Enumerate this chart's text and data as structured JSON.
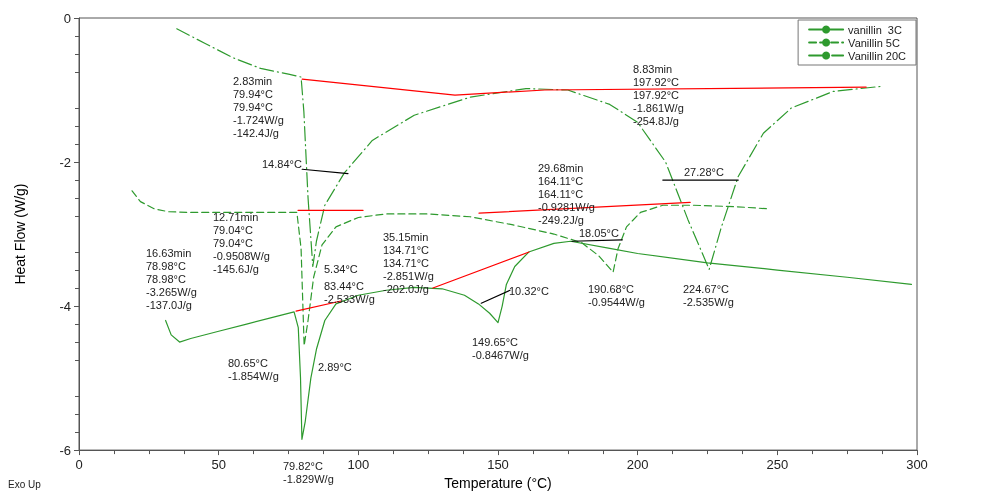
{
  "chart_data": {
    "type": "line",
    "xlabel": "Temperature (°C)",
    "ylabel": "Heat Flow (W/g)",
    "xlim": [
      0,
      300
    ],
    "xticks": [
      0,
      50,
      100,
      150,
      200,
      250,
      300
    ],
    "ylim": [
      -6,
      0
    ],
    "yticks": [
      -6,
      -4,
      -2,
      0
    ],
    "grid": false,
    "legend": "top right",
    "marker": "none",
    "series": [
      {
        "name": "vanillin  3C",
        "color": "#2e9a2e",
        "line_style": "solid",
        "x": [
          31,
          33,
          36,
          40,
          50,
          60,
          70,
          77,
          78.5,
          79.3,
          79.8,
          81,
          83,
          85,
          88,
          92,
          100,
          110,
          120,
          130,
          138,
          143,
          147,
          150,
          151.5,
          153,
          156,
          161,
          170,
          176,
          190,
          200,
          225,
          250,
          275,
          298
        ],
        "values": [
          -4.2,
          -4.4,
          -4.5,
          -4.45,
          -4.35,
          -4.25,
          -4.15,
          -4.08,
          -4.3,
          -5.0,
          -5.85,
          -5.6,
          -5.0,
          -4.6,
          -4.2,
          -3.97,
          -3.85,
          -3.78,
          -3.74,
          -3.76,
          -3.85,
          -3.97,
          -4.1,
          -4.23,
          -4.0,
          -3.7,
          -3.45,
          -3.25,
          -3.13,
          -3.1,
          -3.2,
          -3.27,
          -3.4,
          -3.5,
          -3.6,
          -3.7
        ]
      },
      {
        "name": "Vanillin 5C",
        "color": "#2e9a2e",
        "line_style": "dashed",
        "x": [
          19,
          22,
          27,
          32,
          40,
          60,
          78,
          79.5,
          80.6,
          82,
          84,
          87,
          92,
          100,
          110,
          125,
          140,
          155,
          170,
          180,
          186,
          191.2,
          193,
          196,
          201,
          209,
          220,
          235,
          247
        ],
        "values": [
          -2.4,
          -2.55,
          -2.65,
          -2.69,
          -2.7,
          -2.7,
          -2.7,
          -3.2,
          -4.55,
          -4.2,
          -3.6,
          -3.15,
          -2.9,
          -2.77,
          -2.72,
          -2.72,
          -2.76,
          -2.87,
          -3.0,
          -3.12,
          -3.3,
          -3.53,
          -3.2,
          -2.9,
          -2.7,
          -2.6,
          -2.6,
          -2.62,
          -2.65
        ]
      },
      {
        "name": "Vanillin 20C",
        "color": "#2e9a2e",
        "line_style": "dashdot",
        "x": [
          35,
          45,
          55,
          65,
          75,
          79.5,
          80.5,
          82,
          83.7,
          85,
          88,
          95,
          105,
          120,
          140,
          160,
          175,
          190,
          200,
          210,
          218,
          225.6,
          230,
          236,
          245,
          255,
          270,
          287
        ],
        "values": [
          -0.15,
          -0.35,
          -0.55,
          -0.7,
          -0.78,
          -0.82,
          -1.3,
          -2.5,
          -3.45,
          -3.1,
          -2.6,
          -2.15,
          -1.7,
          -1.35,
          -1.1,
          -0.98,
          -1.0,
          -1.2,
          -1.45,
          -2.0,
          -2.8,
          -3.49,
          -2.9,
          -2.2,
          -1.6,
          -1.25,
          -1.02,
          -0.95
        ]
      },
      {
        "color": "#ff0000",
        "line_style": "solid",
        "x": [
          79.9,
          134.6,
          166.8,
          281.8
        ],
        "values": [
          -0.85,
          -1.07,
          -1.0,
          -0.96
        ]
      },
      {
        "color": "#ff0000",
        "line_style": "solid",
        "x": [
          78.4,
          101.7
        ],
        "values": [
          -2.67,
          -2.67
        ]
      },
      {
        "color": "#ff0000",
        "line_style": "solid",
        "x": [
          143.2,
          218.8
        ],
        "values": [
          -2.71,
          -2.56
        ]
      },
      {
        "color": "#ff0000",
        "line_style": "solid",
        "x": [
          77.7,
          93.8
        ],
        "values": [
          -4.07,
          -3.93
        ]
      },
      {
        "color": "#ff0000",
        "line_style": "solid",
        "x": [
          126.7,
          161.1
        ],
        "values": [
          -3.75,
          -3.25
        ]
      },
      {
        "color": "#000000",
        "line_style": "solid",
        "x": [
          79.9,
          96.3
        ],
        "values": [
          -2.1,
          -2.16
        ]
      },
      {
        "color": "#000000",
        "line_style": "solid",
        "x": [
          209,
          236
        ],
        "values": [
          -2.25,
          -2.25
        ]
      },
      {
        "color": "#000000",
        "line_style": "solid",
        "x": [
          176.5,
          194.5
        ],
        "values": [
          -3.1,
          -3.08
        ]
      },
      {
        "color": "#000000",
        "line_style": "solid",
        "x": [
          144,
          154.3
        ],
        "values": [
          -3.96,
          -3.78
        ]
      }
    ],
    "annotations": [
      "2.83min\n79.94°C\n79.94°C\n-1.724W/g\n-142.4J/g",
      "14.84°C",
      "12.71min\n79.04°C\n79.04°C\n-0.9508W/g\n-145.6J/g",
      "16.63min\n78.98°C\n78.98°C\n-3.265W/g\n-137.0J/g",
      "83.44°C\n-2.533W/g",
      "5.34°C",
      "35.15min\n134.71°C\n134.71°C\n-2.851W/g\n-202.0J/g",
      "10.32°C",
      "149.65°C\n-0.8467W/g",
      "29.68min\n164.11°C\n164.11°C\n-0.9281W/g\n-249.2J/g",
      "18.05°C",
      "190.68°C\n-0.9544W/g",
      "8.83min\n197.92°C\n197.92°C\n-1.861W/g\n-254.8J/g",
      "27.28°C",
      "224.67°C\n-2.535W/g",
      "80.65°C\n-1.854W/g",
      "2.89°C",
      "79.82°C\n-1.829W/g",
      "Exo Up"
    ]
  }
}
